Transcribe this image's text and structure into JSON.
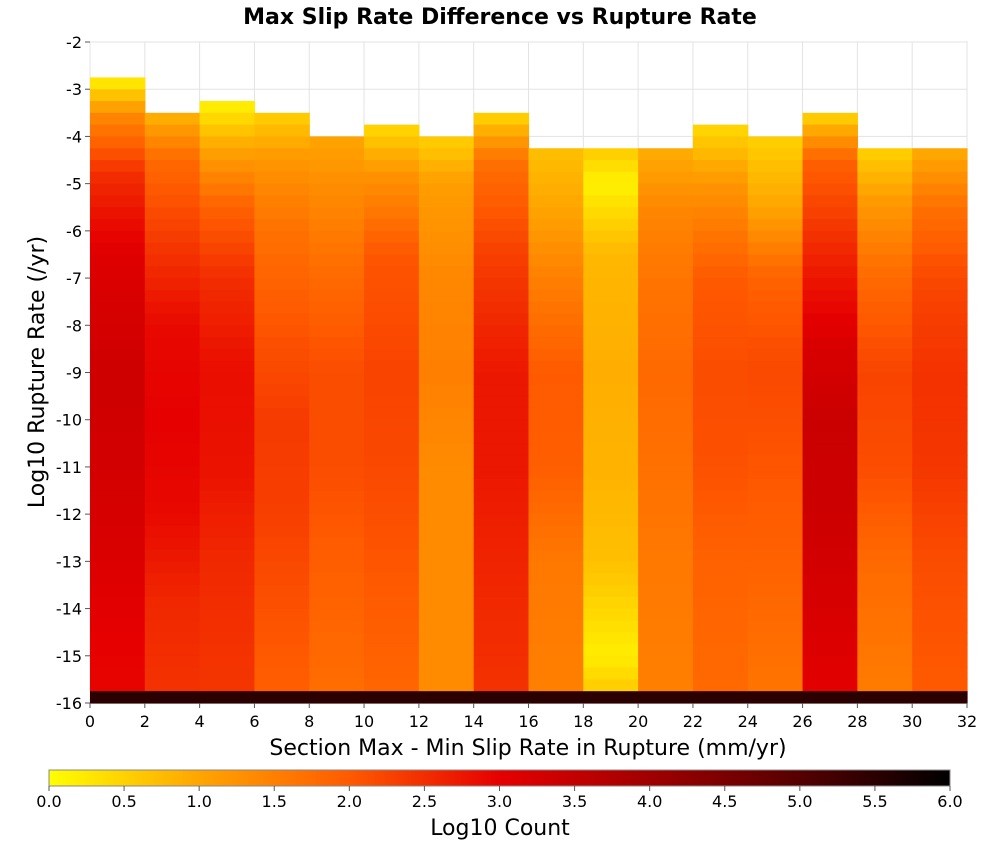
{
  "chart_data": {
    "type": "heatmap",
    "title": "Max Slip Rate Difference vs Rupture Rate",
    "xlabel": "Section Max - Min Slip Rate in Rupture (mm/yr)",
    "ylabel": "Log10 Rupture Rate (/yr)",
    "xlim": [
      0,
      32
    ],
    "ylim": [
      -16,
      -2
    ],
    "x_ticks": [
      "0",
      "2",
      "4",
      "6",
      "8",
      "10",
      "12",
      "14",
      "16",
      "18",
      "20",
      "22",
      "24",
      "26",
      "28",
      "30",
      "32"
    ],
    "y_ticks": [
      "-2",
      "-3",
      "-4",
      "-5",
      "-6",
      "-7",
      "-8",
      "-9",
      "-10",
      "-11",
      "-12",
      "-13",
      "-14",
      "-15",
      "-16"
    ],
    "x_bin_width": 2,
    "y_bin_height": 0.25,
    "grid": true,
    "colorbar": {
      "label": "Log10 Count",
      "range": [
        0,
        6
      ],
      "ticks": [
        "0.0",
        "0.5",
        "1.0",
        "1.5",
        "2.0",
        "2.5",
        "3.0",
        "3.5",
        "4.0",
        "4.5",
        "5.0",
        "5.5",
        "6.0"
      ],
      "colors": [
        "#ffff00",
        "#ffa500",
        "#ff5a00",
        "#e60000",
        "#a00000",
        "#550000",
        "#000000"
      ]
    },
    "columns": [
      {
        "x_range": [
          0,
          2
        ],
        "ymax": -2.75,
        "base_min": -16.0,
        "bottom_value": 5.5,
        "anchors": [
          [
            -2.75,
            0.1
          ],
          [
            -3.6,
            1.4
          ],
          [
            -4.8,
            2.5
          ],
          [
            -6.5,
            3.1
          ],
          [
            -9.0,
            3.35
          ],
          [
            -12.5,
            3.2
          ],
          [
            -14.5,
            3.0
          ],
          [
            -15.75,
            2.95
          ]
        ]
      },
      {
        "x_range": [
          2,
          4
        ],
        "ymax": -3.5,
        "base_min": -16.0,
        "bottom_value": 5.5,
        "anchors": [
          [
            -3.5,
            0.8
          ],
          [
            -4.5,
            1.8
          ],
          [
            -6.0,
            2.3
          ],
          [
            -8.0,
            2.9
          ],
          [
            -10.0,
            3.0
          ],
          [
            -12.0,
            2.9
          ],
          [
            -14.0,
            2.55
          ],
          [
            -15.75,
            2.45
          ]
        ]
      },
      {
        "x_range": [
          4,
          6
        ],
        "ymax": -3.25,
        "base_min": -16.0,
        "bottom_value": 5.5,
        "anchors": [
          [
            -3.25,
            0.1
          ],
          [
            -4.25,
            1.0
          ],
          [
            -5.5,
            1.9
          ],
          [
            -7.0,
            2.5
          ],
          [
            -9.0,
            2.85
          ],
          [
            -11.0,
            2.8
          ],
          [
            -13.0,
            2.55
          ],
          [
            -15.75,
            2.4
          ]
        ]
      },
      {
        "x_range": [
          6,
          8
        ],
        "ymax": -3.5,
        "base_min": -16.0,
        "bottom_value": 5.5,
        "anchors": [
          [
            -3.5,
            0.5
          ],
          [
            -4.5,
            1.2
          ],
          [
            -6.0,
            1.7
          ],
          [
            -8.0,
            2.05
          ],
          [
            -10.0,
            2.35
          ],
          [
            -12.0,
            2.3
          ],
          [
            -14.0,
            2.1
          ],
          [
            -15.75,
            1.95
          ]
        ]
      },
      {
        "x_range": [
          8,
          10
        ],
        "ymax": -4.0,
        "base_min": -16.0,
        "bottom_value": 5.5,
        "anchors": [
          [
            -4.0,
            1.0
          ],
          [
            -5.0,
            1.3
          ],
          [
            -7.0,
            1.8
          ],
          [
            -9.0,
            2.15
          ],
          [
            -11.0,
            2.15
          ],
          [
            -13.0,
            1.95
          ],
          [
            -15.75,
            1.75
          ]
        ]
      },
      {
        "x_range": [
          10,
          12
        ],
        "ymax": -3.75,
        "base_min": -16.0,
        "bottom_value": 5.5,
        "anchors": [
          [
            -3.75,
            0.4
          ],
          [
            -4.75,
            1.2
          ],
          [
            -6.5,
            2.05
          ],
          [
            -9.0,
            2.25
          ],
          [
            -11.0,
            2.2
          ],
          [
            -13.0,
            2.05
          ],
          [
            -15.75,
            1.85
          ]
        ]
      },
      {
        "x_range": [
          12,
          14
        ],
        "ymax": -4.0,
        "base_min": -16.0,
        "bottom_value": 5.5,
        "anchors": [
          [
            -4.0,
            0.5
          ],
          [
            -5.0,
            1.1
          ],
          [
            -7.0,
            1.4
          ],
          [
            -9.0,
            1.5
          ],
          [
            -11.0,
            1.35
          ],
          [
            -13.0,
            1.35
          ],
          [
            -15.75,
            1.35
          ]
        ]
      },
      {
        "x_range": [
          14,
          16
        ],
        "ymax": -3.5,
        "base_min": -16.0,
        "bottom_value": 5.5,
        "anchors": [
          [
            -3.5,
            0.4
          ],
          [
            -4.5,
            1.7
          ],
          [
            -6.5,
            2.3
          ],
          [
            -9.0,
            2.75
          ],
          [
            -11.0,
            2.75
          ],
          [
            -13.0,
            2.6
          ],
          [
            -15.75,
            2.45
          ]
        ]
      },
      {
        "x_range": [
          16,
          18
        ],
        "ymax": -4.25,
        "base_min": -16.0,
        "bottom_value": 5.5,
        "anchors": [
          [
            -4.25,
            0.7
          ],
          [
            -5.5,
            1.0
          ],
          [
            -7.0,
            1.5
          ],
          [
            -9.0,
            2.0
          ],
          [
            -11.0,
            1.95
          ],
          [
            -13.0,
            1.6
          ],
          [
            -15.75,
            1.5
          ]
        ]
      },
      {
        "x_range": [
          18,
          20
        ],
        "ymax": -4.25,
        "base_min": -16.0,
        "bottom_value": 5.5,
        "anchors": [
          [
            -4.25,
            0.6
          ],
          [
            -5.0,
            0.15
          ],
          [
            -6.5,
            0.8
          ],
          [
            -9.0,
            0.9
          ],
          [
            -11.0,
            0.85
          ],
          [
            -13.0,
            0.7
          ],
          [
            -15.0,
            0.2
          ],
          [
            -15.75,
            0.6
          ]
        ]
      },
      {
        "x_range": [
          20,
          22
        ],
        "ymax": -4.25,
        "base_min": -16.0,
        "bottom_value": 5.5,
        "anchors": [
          [
            -4.25,
            0.9
          ],
          [
            -5.5,
            1.4
          ],
          [
            -7.0,
            1.65
          ],
          [
            -9.0,
            1.8
          ],
          [
            -11.0,
            1.7
          ],
          [
            -13.0,
            1.6
          ],
          [
            -15.75,
            1.5
          ]
        ]
      },
      {
        "x_range": [
          22,
          24
        ],
        "ymax": -3.75,
        "base_min": -16.0,
        "bottom_value": 5.5,
        "anchors": [
          [
            -3.75,
            0.4
          ],
          [
            -5.0,
            1.2
          ],
          [
            -7.0,
            2.0
          ],
          [
            -9.0,
            2.15
          ],
          [
            -11.0,
            2.1
          ],
          [
            -13.0,
            1.9
          ],
          [
            -15.75,
            1.8
          ]
        ]
      },
      {
        "x_range": [
          24,
          26
        ],
        "ymax": -4.0,
        "base_min": -16.0,
        "bottom_value": 5.5,
        "anchors": [
          [
            -4.0,
            0.5
          ],
          [
            -5.5,
            1.0
          ],
          [
            -7.0,
            1.9
          ],
          [
            -9.0,
            2.2
          ],
          [
            -11.0,
            2.05
          ],
          [
            -13.0,
            1.9
          ],
          [
            -15.75,
            1.65
          ]
        ]
      },
      {
        "x_range": [
          26,
          28
        ],
        "ymax": -3.5,
        "base_min": -16.0,
        "bottom_value": 5.5,
        "anchors": [
          [
            -3.5,
            0.4
          ],
          [
            -4.5,
            1.9
          ],
          [
            -6.5,
            2.6
          ],
          [
            -8.5,
            3.2
          ],
          [
            -10.0,
            3.4
          ],
          [
            -12.0,
            3.35
          ],
          [
            -14.0,
            3.2
          ],
          [
            -15.75,
            3.05
          ]
        ]
      },
      {
        "x_range": [
          28,
          30
        ],
        "ymax": -4.25,
        "base_min": -16.0,
        "bottom_value": 5.5,
        "anchors": [
          [
            -4.25,
            0.5
          ],
          [
            -5.5,
            1.2
          ],
          [
            -7.0,
            1.8
          ],
          [
            -9.0,
            2.25
          ],
          [
            -11.0,
            2.15
          ],
          [
            -13.0,
            1.8
          ],
          [
            -15.75,
            1.55
          ]
        ]
      },
      {
        "x_range": [
          30,
          32
        ],
        "ymax": -4.25,
        "base_min": -16.0,
        "bottom_value": 5.5,
        "anchors": [
          [
            -4.25,
            0.9
          ],
          [
            -5.5,
            1.7
          ],
          [
            -7.0,
            2.2
          ],
          [
            -9.0,
            2.45
          ],
          [
            -11.0,
            2.4
          ],
          [
            -13.0,
            2.15
          ],
          [
            -15.75,
            2.0
          ]
        ]
      }
    ]
  }
}
